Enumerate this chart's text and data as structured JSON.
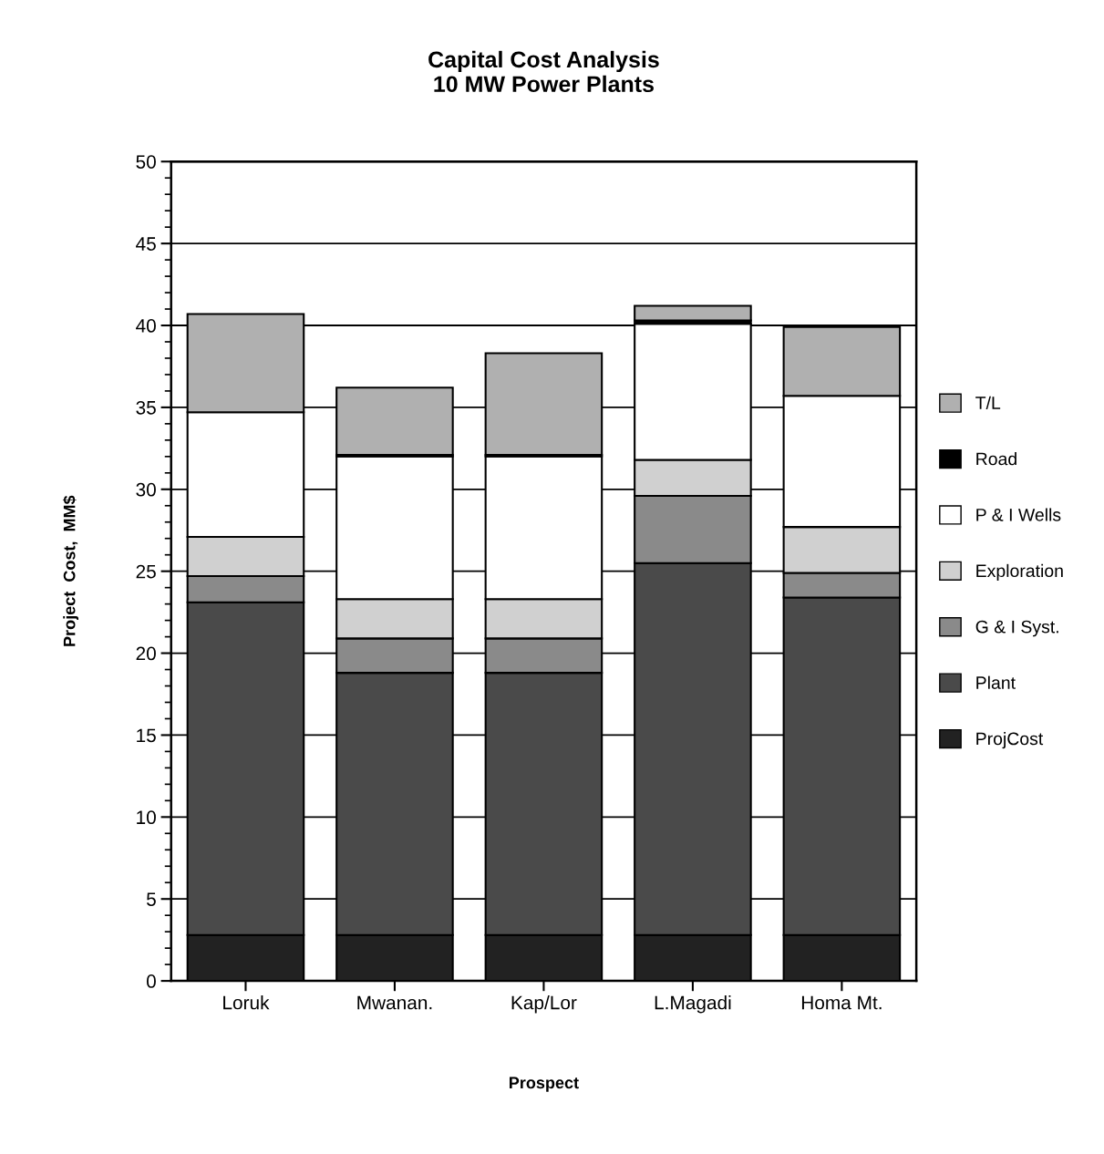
{
  "chart_data": {
    "type": "bar",
    "stacked": true,
    "title": "Capital Cost Analysis\n10 MW Power Plants",
    "xlabel": "Prospect",
    "ylabel": "Project  Cost,  MM$",
    "categories": [
      "Loruk",
      "Mwanan.",
      "Kap/Lor",
      "L.Magadi",
      "Homa Mt."
    ],
    "series": [
      {
        "name": "ProjCost",
        "color": "#222222",
        "values": [
          2.8,
          2.8,
          2.8,
          2.8,
          2.8
        ]
      },
      {
        "name": "Plant",
        "color": "#4a4a4a",
        "values": [
          20.3,
          16.0,
          16.0,
          22.7,
          20.6
        ]
      },
      {
        "name": "G & I Syst.",
        "color": "#8a8a8a",
        "values": [
          1.6,
          2.1,
          2.1,
          4.1,
          1.5
        ]
      },
      {
        "name": "Exploration",
        "color": "#d0d0d0",
        "values": [
          2.4,
          2.4,
          2.4,
          2.2,
          2.8
        ]
      },
      {
        "name": "P & I Wells",
        "color": "#ffffff",
        "values": [
          7.6,
          8.7,
          8.7,
          8.3,
          8.0
        ]
      },
      {
        "name": "Road",
        "color": "#000000",
        "values": [
          null,
          0.1,
          0.1,
          0.2,
          null
        ]
      },
      {
        "name": "T/L",
        "color": "#b0b0b0",
        "values": [
          6.0,
          4.1,
          6.2,
          0.9,
          4.2
        ]
      }
    ],
    "ylim": [
      0,
      50
    ],
    "yticks": [
      0,
      5,
      10,
      15,
      20,
      25,
      30,
      35,
      40,
      45,
      50
    ],
    "grid": "y",
    "legend": "right"
  }
}
